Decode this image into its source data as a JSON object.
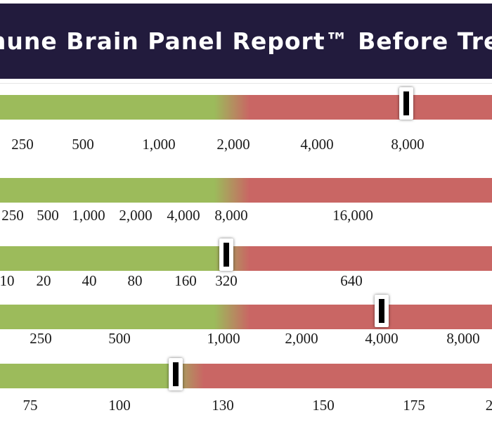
{
  "header": {
    "title": "mune Brain Panel Report™ Before Trea"
  },
  "colors": {
    "header_bg": "#221b3d",
    "normal": "#9cbb5b",
    "elevated": "#c96664"
  },
  "rows": [
    {
      "name": "row-1",
      "ticks": [
        "250",
        "500",
        "1,000",
        "2,000",
        "4,000",
        "8,000"
      ],
      "marker": "8,000"
    },
    {
      "name": "row-2",
      "ticks": [
        "250",
        "500",
        "1,000",
        "2,000",
        "4,000",
        "8,000",
        "16,000"
      ],
      "marker": null
    },
    {
      "name": "row-3",
      "ticks": [
        "10",
        "20",
        "40",
        "80",
        "160",
        "320",
        "640"
      ],
      "marker": "320"
    },
    {
      "name": "row-4",
      "ticks": [
        "250",
        "500",
        "1,000",
        "2,000",
        "4,000",
        "8,000"
      ],
      "marker": "4,000"
    },
    {
      "name": "row-5",
      "ticks": [
        "75",
        "100",
        "130",
        "150",
        "175",
        "2"
      ],
      "marker": "between 100 and 130"
    }
  ]
}
